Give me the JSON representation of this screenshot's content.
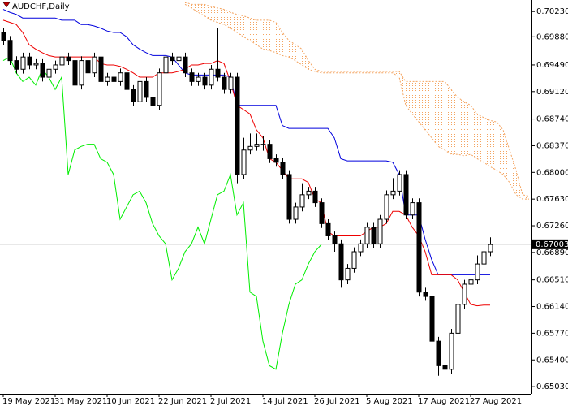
{
  "chart_data": {
    "type": "candlestick",
    "title": "AUDCHF,Daily",
    "categories": [
      "19 May 2021",
      null,
      null,
      null,
      null,
      null,
      null,
      null,
      "31 May 2021",
      null,
      null,
      null,
      null,
      null,
      null,
      null,
      "10 Jun 2021",
      null,
      null,
      null,
      null,
      null,
      null,
      null,
      "22 Jun 2021",
      null,
      null,
      null,
      null,
      null,
      null,
      null,
      "2 Jul 2021",
      null,
      null,
      null,
      null,
      null,
      null,
      null,
      "14 Jul 2021",
      null,
      null,
      null,
      null,
      null,
      null,
      null,
      "26 Jul 2021",
      null,
      null,
      null,
      null,
      null,
      null,
      null,
      "5 Aug 2021",
      null,
      null,
      null,
      null,
      null,
      null,
      null,
      "17 Aug 2021",
      null,
      null,
      null,
      null,
      null,
      null,
      null,
      "27 Aug 2021",
      null,
      null,
      null,
      null,
      null,
      null,
      null,
      null,
      null
    ],
    "open": [
      0.6994,
      0.6983,
      0.6955,
      0.6943,
      0.696,
      0.6949,
      0.6951,
      0.6932,
      0.6943,
      0.6949,
      0.696,
      0.6955,
      0.6921,
      0.6955,
      0.6938,
      0.696,
      0.6926,
      0.6932,
      0.6926,
      0.6938,
      0.6915,
      0.6898,
      0.6926,
      0.6904,
      0.6893,
      0.6938,
      0.696,
      0.6955,
      0.696,
      0.6938,
      0.6926,
      0.6932,
      0.6921,
      0.6943,
      0.6932,
      0.6915,
      0.6932,
      0.6797,
      0.6831,
      0.6836,
      0.6839,
      0.6839,
      0.6819,
      0.6814,
      0.6797,
      0.6735,
      0.6752,
      0.6769,
      0.6774,
      0.6758,
      0.6729,
      0.6712,
      0.6701,
      0.6651,
      0.6667,
      0.669,
      0.6701,
      0.6724,
      0.6701,
      0.6735,
      0.6769,
      0.6774,
      0.6797,
      0.6741,
      0.6758,
      0.6634,
      0.6628,
      0.6566,
      0.6532,
      0.6527,
      0.6577,
      0.6617,
      0.6645,
      0.6651,
      0.6673,
      0.669,
      null,
      null,
      null,
      null,
      null,
      null
    ],
    "high": [
      0.7,
      0.6989,
      0.6961,
      0.6966,
      0.6966,
      0.6957,
      0.6957,
      0.6949,
      0.6955,
      0.6966,
      0.6966,
      0.6961,
      0.6961,
      0.6961,
      0.6966,
      0.6966,
      0.6938,
      0.6938,
      0.6944,
      0.6944,
      0.6921,
      0.6932,
      0.6932,
      0.691,
      0.6944,
      0.6966,
      0.6966,
      0.6966,
      0.6966,
      0.6944,
      0.6938,
      0.6938,
      0.6949,
      0.7,
      0.6938,
      0.6938,
      0.6938,
      0.6848,
      0.6854,
      0.6854,
      0.685,
      0.6845,
      0.6825,
      0.682,
      0.6803,
      0.6758,
      0.6785,
      0.678,
      0.678,
      0.6764,
      0.6735,
      0.6718,
      0.6707,
      0.6673,
      0.6696,
      0.6707,
      0.673,
      0.673,
      0.6741,
      0.6775,
      0.6792,
      0.6803,
      0.6803,
      0.6764,
      0.6764,
      0.664,
      0.6634,
      0.6572,
      0.6538,
      0.6583,
      0.6623,
      0.6651,
      0.666,
      0.6685,
      0.6715,
      0.671,
      null,
      null,
      null,
      null,
      null,
      null
    ],
    "low": [
      0.6977,
      0.6949,
      0.6937,
      0.6937,
      0.6943,
      0.6943,
      0.6926,
      0.6926,
      0.6937,
      0.6943,
      0.6949,
      0.6915,
      0.6915,
      0.6932,
      0.6932,
      0.692,
      0.692,
      0.692,
      0.692,
      0.6909,
      0.6892,
      0.6892,
      0.6898,
      0.6887,
      0.6887,
      0.6932,
      0.6949,
      0.6949,
      0.6932,
      0.692,
      0.692,
      0.6915,
      0.6915,
      0.6926,
      0.6909,
      0.6909,
      0.6785,
      0.6791,
      0.6825,
      0.683,
      0.683,
      0.6813,
      0.6808,
      0.6791,
      0.6729,
      0.6729,
      0.6746,
      0.6763,
      0.6752,
      0.6723,
      0.6706,
      0.669,
      0.664,
      0.6645,
      0.6661,
      0.6684,
      0.6695,
      0.6695,
      0.6695,
      0.6729,
      0.6763,
      0.6768,
      0.6735,
      0.6735,
      0.6628,
      0.6622,
      0.656,
      0.6518,
      0.6513,
      0.6521,
      0.6571,
      0.6611,
      0.6628,
      0.6645,
      0.6667,
      0.6684,
      null,
      null,
      null,
      null,
      null,
      null
    ],
    "close": [
      0.6983,
      0.6955,
      0.6943,
      0.696,
      0.6949,
      0.6951,
      0.6932,
      0.6943,
      0.6949,
      0.696,
      0.6955,
      0.6921,
      0.6955,
      0.6938,
      0.696,
      0.6926,
      0.6932,
      0.6926,
      0.6938,
      0.6915,
      0.6898,
      0.6926,
      0.6904,
      0.6893,
      0.6938,
      0.696,
      0.6955,
      0.696,
      0.6938,
      0.6926,
      0.6932,
      0.6921,
      0.6943,
      0.6932,
      0.6915,
      0.6932,
      0.6797,
      0.6831,
      0.6836,
      0.6839,
      0.6839,
      0.6819,
      0.6814,
      0.6797,
      0.6735,
      0.6752,
      0.6769,
      0.6774,
      0.6758,
      0.6729,
      0.6712,
      0.6701,
      0.6651,
      0.6667,
      0.669,
      0.6701,
      0.6724,
      0.6701,
      0.6735,
      0.6769,
      0.6774,
      0.6797,
      0.6741,
      0.6758,
      0.6634,
      0.6628,
      0.6566,
      0.6532,
      0.6527,
      0.6577,
      0.6617,
      0.6645,
      0.6651,
      0.6673,
      0.669,
      0.67,
      null,
      null,
      null,
      null,
      null,
      null
    ],
    "bull_color": "#ffffff",
    "bear_color": "#000000",
    "cloud_color": "#f4a460",
    "series": [
      {
        "color": "#f4a460",
        "style": "dashed",
        "values": [
          null,
          null,
          null,
          null,
          null,
          null,
          null,
          null,
          null,
          null,
          null,
          null,
          null,
          null,
          null,
          null,
          null,
          null,
          null,
          null,
          null,
          null,
          null,
          null,
          null,
          null,
          null,
          null,
          0.7033,
          0.7028,
          0.7022,
          0.7017,
          0.7011,
          0.7008,
          0.7005,
          0.7,
          0.6994,
          0.6988,
          0.6983,
          0.6977,
          0.6971,
          0.6969,
          0.6966,
          0.6962,
          0.696,
          0.6955,
          0.6949,
          0.6943,
          0.694,
          0.6938,
          0.6938,
          0.6938,
          0.6938,
          0.6938,
          0.6938,
          0.6938,
          0.6938,
          0.6938,
          0.6938,
          0.6938,
          0.6938,
          0.6932,
          0.6893,
          0.6881,
          0.687,
          0.6859,
          0.6848,
          0.6836,
          0.6831,
          0.6825,
          0.6825,
          0.6823,
          0.6825,
          0.6819,
          0.6814,
          0.6808,
          0.6803,
          0.6797,
          0.6786,
          0.6769,
          0.6763,
          0.6763
        ]
      },
      {
        "color": "#f4a460",
        "style": "dashed",
        "values": [
          null,
          null,
          null,
          null,
          null,
          null,
          null,
          null,
          null,
          null,
          null,
          null,
          null,
          null,
          null,
          null,
          null,
          null,
          null,
          null,
          null,
          null,
          null,
          null,
          null,
          null,
          null,
          null,
          0.7036,
          0.7033,
          0.7033,
          0.7033,
          0.703,
          0.7028,
          0.7026,
          0.7022,
          0.7019,
          0.7017,
          0.7014,
          0.7011,
          0.7011,
          0.7011,
          0.7008,
          0.6994,
          0.6983,
          0.6977,
          0.6971,
          0.6955,
          0.6943,
          0.694,
          0.694,
          0.694,
          0.694,
          0.694,
          0.694,
          0.694,
          0.694,
          0.694,
          0.694,
          0.694,
          0.694,
          0.694,
          0.6926,
          0.6926,
          0.6926,
          0.6926,
          0.6926,
          0.6926,
          0.6926,
          0.6915,
          0.6904,
          0.6898,
          0.6893,
          0.6881,
          0.6876,
          0.6872,
          0.687,
          0.6859,
          0.6831,
          0.6803,
          0.6769,
          0.6767
        ]
      },
      {
        "color": "#00ee00",
        "style": "solid",
        "values": [
          0.6955,
          0.696,
          0.6938,
          0.6926,
          0.6932,
          0.6921,
          0.6943,
          0.6932,
          0.6915,
          0.6932,
          0.6797,
          0.6831,
          0.6836,
          0.6839,
          0.6839,
          0.6819,
          0.6814,
          0.6797,
          0.6735,
          0.6752,
          0.6769,
          0.6774,
          0.6758,
          0.6729,
          0.6712,
          0.6701,
          0.6651,
          0.6667,
          0.669,
          0.6701,
          0.6724,
          0.6701,
          0.6735,
          0.6769,
          0.6774,
          0.6797,
          0.6741,
          0.6758,
          0.6634,
          0.6628,
          0.6566,
          0.6532,
          0.6527,
          0.6577,
          0.6617,
          0.6645,
          0.6651,
          0.6673,
          0.669,
          0.67,
          null,
          null,
          null,
          null,
          null,
          null,
          null,
          null,
          null,
          null,
          null,
          null,
          null,
          null,
          null,
          null,
          null,
          null,
          null,
          null,
          null,
          null,
          null,
          null,
          null,
          null,
          null,
          null,
          null,
          null,
          null,
          null
        ]
      },
      {
        "color": "#0000dd",
        "style": "solid",
        "values": [
          0.7026,
          0.7022,
          0.7019,
          0.7014,
          0.7014,
          0.7014,
          0.7014,
          0.7014,
          0.7014,
          0.7011,
          0.7011,
          0.7011,
          0.7005,
          0.7005,
          0.7003,
          0.7,
          0.6996,
          0.6994,
          0.6994,
          0.6988,
          0.6977,
          0.6971,
          0.6966,
          0.6962,
          0.6962,
          0.6962,
          0.696,
          0.6949,
          0.6938,
          0.6935,
          0.6935,
          0.6935,
          0.6935,
          0.6935,
          0.6935,
          0.6932,
          0.6893,
          0.6893,
          0.6893,
          0.6893,
          0.6893,
          0.6893,
          0.6893,
          0.6865,
          0.6861,
          0.6861,
          0.6861,
          0.6861,
          0.6861,
          0.6861,
          0.6861,
          0.6848,
          0.6819,
          0.6816,
          0.6816,
          0.6816,
          0.6816,
          0.6816,
          0.6816,
          0.6816,
          0.6814,
          0.6797,
          0.6741,
          0.6741,
          0.6741,
          0.6707,
          0.6679,
          0.6658,
          0.6658,
          0.6658,
          0.6658,
          0.6658,
          0.6658,
          0.6658,
          0.6658,
          0.6658,
          null,
          null,
          null,
          null,
          null,
          null
        ]
      },
      {
        "color": "#ee0000",
        "style": "solid",
        "values": [
          0.7011,
          0.7008,
          0.7005,
          0.6994,
          0.6977,
          0.6971,
          0.6966,
          0.6962,
          0.696,
          0.696,
          0.696,
          0.696,
          0.696,
          0.696,
          0.696,
          0.6951,
          0.6949,
          0.6949,
          0.6947,
          0.6943,
          0.6938,
          0.6932,
          0.6932,
          0.6932,
          0.6938,
          0.6938,
          0.6938,
          0.694,
          0.6943,
          0.6949,
          0.6949,
          0.6951,
          0.6951,
          0.6955,
          0.6951,
          0.6926,
          0.6893,
          0.6887,
          0.6881,
          0.6859,
          0.6848,
          0.6819,
          0.6814,
          0.6803,
          0.6791,
          0.6791,
          0.6791,
          0.6786,
          0.6763,
          0.6758,
          0.6718,
          0.6712,
          0.6712,
          0.6712,
          0.6712,
          0.6712,
          0.6718,
          0.6724,
          0.6724,
          0.6729,
          0.6746,
          0.6746,
          0.6741,
          0.6724,
          0.6712,
          0.669,
          0.6658,
          0.6658,
          0.6658,
          0.6658,
          0.6651,
          0.6634,
          0.6617,
          0.6615,
          0.6616,
          0.6616,
          null,
          null,
          null,
          null,
          null,
          null
        ]
      }
    ],
    "last_price": 0.67003,
    "ylim": [
      0.6493,
      0.7039
    ],
    "yticks": [
      {
        "value": 0.7023,
        "label": "0.70230"
      },
      {
        "value": 0.6988,
        "label": "0.69880"
      },
      {
        "value": 0.6949,
        "label": "0.69490"
      },
      {
        "value": 0.6912,
        "label": "0.69120"
      },
      {
        "value": 0.6874,
        "label": "0.68740"
      },
      {
        "value": 0.6837,
        "label": "0.68370"
      },
      {
        "value": 0.68,
        "label": "0.68000"
      },
      {
        "value": 0.6763,
        "label": "0.67630"
      },
      {
        "value": 0.6726,
        "label": "0.67260"
      },
      {
        "value": 0.6689,
        "label": "0.66890"
      },
      {
        "value": 0.6651,
        "label": "0.66510"
      },
      {
        "value": 0.6614,
        "label": "0.66140"
      },
      {
        "value": 0.6577,
        "label": "0.65770"
      },
      {
        "value": 0.654,
        "label": "0.65400"
      },
      {
        "value": 0.6503,
        "label": "0.65030"
      }
    ]
  }
}
